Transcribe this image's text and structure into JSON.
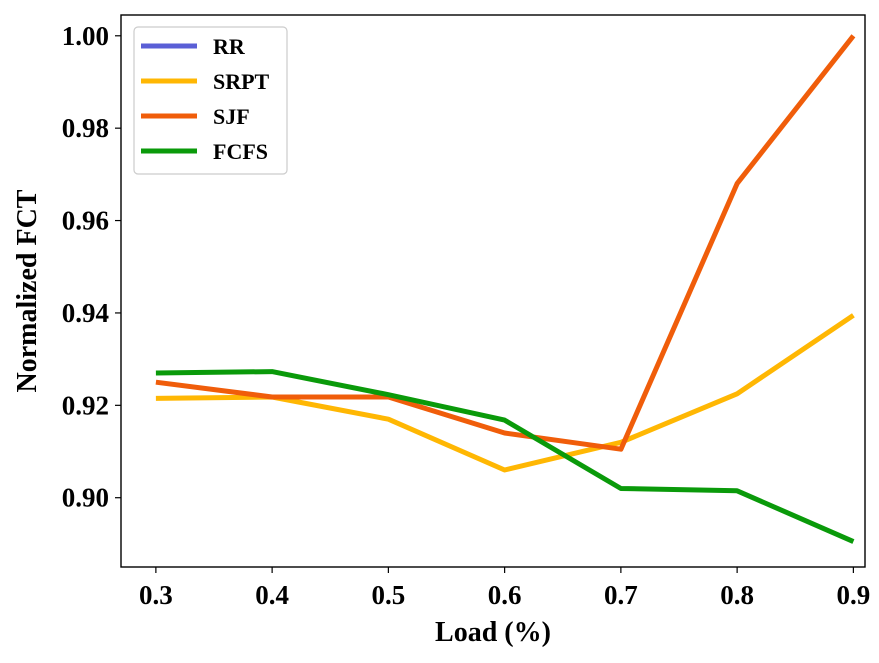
{
  "chart_data": {
    "type": "line",
    "title": "",
    "xlabel": "Load (%)",
    "ylabel": "Normalized FCT",
    "x": [
      0.3,
      0.4,
      0.5,
      0.6,
      0.7,
      0.8,
      0.9
    ],
    "x_tick_labels": [
      "0.3",
      "0.4",
      "0.5",
      "0.6",
      "0.7",
      "0.8",
      "0.9"
    ],
    "y_ticks": [
      0.9,
      0.92,
      0.94,
      0.96,
      0.98,
      1.0
    ],
    "y_tick_labels": [
      "0.90",
      "0.92",
      "0.94",
      "0.96",
      "0.98",
      "1.00"
    ],
    "xlim": [
      0.27,
      0.91
    ],
    "ylim": [
      0.885,
      1.0045
    ],
    "grid": false,
    "legend_position": "top-left",
    "series": [
      {
        "name": "RR",
        "color": "#5a5fd6",
        "values": [
          null,
          null,
          null,
          null,
          null,
          null,
          null
        ]
      },
      {
        "name": "SRPT",
        "color": "#ffb703",
        "values": [
          0.9215,
          0.9218,
          0.917,
          0.906,
          0.912,
          0.9225,
          0.9395
        ]
      },
      {
        "name": "SJF",
        "color": "#f05d0a",
        "values": [
          0.925,
          0.9218,
          0.9218,
          0.914,
          0.9105,
          0.968,
          1.0
        ]
      },
      {
        "name": "FCFS",
        "color": "#0a9a0a",
        "values": [
          0.927,
          0.9273,
          0.9223,
          0.9168,
          0.902,
          0.9015,
          0.8905
        ]
      }
    ]
  }
}
